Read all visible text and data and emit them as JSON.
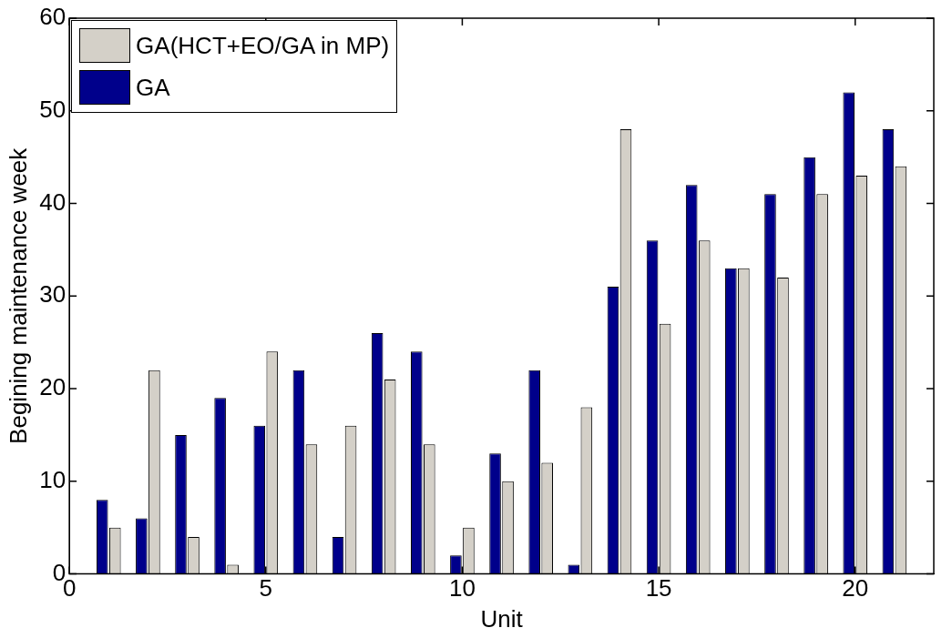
{
  "chart_data": {
    "type": "bar",
    "xlabel": "Unit",
    "ylabel": "Begining maintenance week",
    "x": [
      1,
      2,
      3,
      4,
      5,
      6,
      7,
      8,
      9,
      10,
      11,
      12,
      13,
      14,
      15,
      16,
      17,
      18,
      19,
      20,
      21
    ],
    "series": [
      {
        "name": "GA",
        "color": "#00008b",
        "values": [
          8,
          6,
          15,
          19,
          16,
          22,
          4,
          26,
          24,
          2,
          13,
          22,
          1,
          31,
          36,
          42,
          33,
          41,
          45,
          52,
          48
        ]
      },
      {
        "name": "GA(HCT+EO/GA in MP)",
        "color": "#d4d0c8",
        "values": [
          5,
          22,
          4,
          1,
          24,
          14,
          16,
          21,
          14,
          5,
          10,
          12,
          18,
          48,
          27,
          36,
          33,
          32,
          41,
          43,
          44
        ]
      }
    ],
    "xlim": [
      0,
      22
    ],
    "xticks": [
      0,
      5,
      10,
      15,
      20
    ],
    "ylim": [
      0,
      60
    ],
    "yticks": [
      0,
      10,
      20,
      30,
      40,
      50,
      60
    ],
    "grid": false,
    "legend": "top left"
  }
}
